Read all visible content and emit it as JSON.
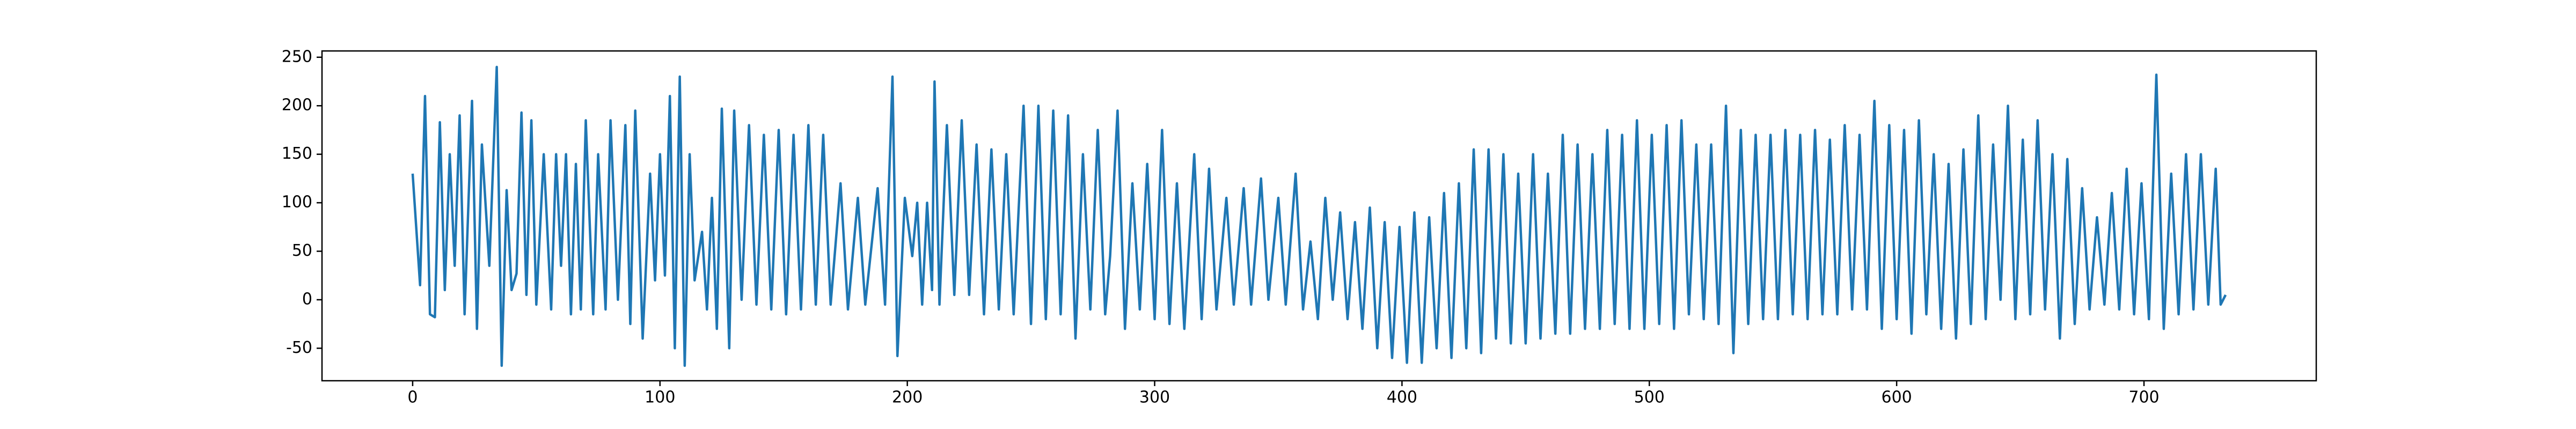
{
  "chart_data": {
    "type": "line",
    "color": "#1f77b4",
    "x": [
      0,
      3,
      5,
      7,
      9,
      11,
      13,
      15,
      17,
      19,
      21,
      24,
      26,
      28,
      31,
      34,
      36,
      38,
      40,
      42,
      44,
      46,
      48,
      50,
      53,
      56,
      58,
      60,
      62,
      64,
      66,
      68,
      70,
      73,
      75,
      78,
      80,
      83,
      86,
      88,
      90,
      93,
      96,
      98,
      100,
      102,
      104,
      106,
      108,
      110,
      112,
      114,
      117,
      119,
      121,
      123,
      125,
      128,
      130,
      133,
      136,
      139,
      142,
      145,
      148,
      151,
      154,
      157,
      160,
      163,
      166,
      169,
      173,
      176,
      180,
      183,
      188,
      191,
      194,
      196,
      199,
      202,
      204,
      206,
      208,
      210,
      211,
      213,
      216,
      219,
      222,
      225,
      228,
      231,
      234,
      237,
      240,
      243,
      247,
      250,
      253,
      256,
      259,
      262,
      265,
      268,
      271,
      274,
      277,
      280,
      282,
      285,
      288,
      291,
      294,
      297,
      300,
      303,
      306,
      309,
      312,
      316,
      319,
      322,
      325,
      329,
      332,
      336,
      339,
      343,
      346,
      350,
      353,
      357,
      360,
      363,
      366,
      369,
      372,
      375,
      378,
      381,
      384,
      387,
      390,
      393,
      396,
      399,
      402,
      405,
      408,
      411,
      414,
      417,
      420,
      423,
      426,
      429,
      432,
      435,
      438,
      441,
      444,
      447,
      450,
      453,
      456,
      459,
      462,
      465,
      468,
      471,
      474,
      477,
      480,
      483,
      486,
      489,
      492,
      495,
      498,
      501,
      504,
      507,
      510,
      513,
      516,
      519,
      522,
      525,
      528,
      531,
      534,
      537,
      540,
      543,
      546,
      549,
      552,
      555,
      558,
      561,
      564,
      567,
      570,
      573,
      576,
      579,
      582,
      585,
      588,
      591,
      594,
      597,
      600,
      603,
      606,
      609,
      612,
      615,
      618,
      621,
      624,
      627,
      630,
      633,
      636,
      639,
      642,
      645,
      648,
      651,
      654,
      657,
      660,
      663,
      666,
      669,
      672,
      675,
      678,
      681,
      684,
      687,
      690,
      693,
      696,
      699,
      702,
      705,
      708,
      711,
      714,
      717,
      720,
      723,
      726,
      729,
      731,
      733
    ],
    "values": [
      130,
      15,
      210,
      -15,
      -18,
      183,
      10,
      150,
      35,
      190,
      -15,
      205,
      -30,
      160,
      35,
      240,
      -68,
      113,
      10,
      27,
      193,
      5,
      185,
      -5,
      150,
      -10,
      150,
      35,
      150,
      -15,
      140,
      -10,
      185,
      -15,
      150,
      -10,
      185,
      0,
      180,
      -25,
      195,
      -40,
      130,
      20,
      150,
      25,
      210,
      -50,
      230,
      -68,
      150,
      20,
      70,
      -10,
      105,
      -30,
      197,
      -50,
      195,
      0,
      180,
      -5,
      170,
      -10,
      175,
      -15,
      170,
      -10,
      180,
      -5,
      170,
      -5,
      120,
      -10,
      105,
      -5,
      115,
      -5,
      230,
      -58,
      105,
      45,
      100,
      -5,
      100,
      10,
      225,
      -5,
      180,
      5,
      185,
      5,
      160,
      -15,
      155,
      -10,
      150,
      -15,
      200,
      -25,
      200,
      -20,
      195,
      -15,
      190,
      -40,
      150,
      -10,
      175,
      -15,
      45,
      195,
      -30,
      120,
      -10,
      140,
      -20,
      175,
      -25,
      120,
      -30,
      150,
      -20,
      135,
      -10,
      105,
      -5,
      115,
      -5,
      125,
      0,
      105,
      -5,
      130,
      -10,
      60,
      -20,
      105,
      0,
      90,
      -20,
      80,
      -30,
      95,
      -50,
      80,
      -60,
      75,
      -65,
      90,
      -65,
      85,
      -50,
      110,
      -60,
      120,
      -50,
      155,
      -55,
      155,
      -40,
      150,
      -45,
      130,
      -45,
      150,
      -40,
      130,
      -35,
      170,
      -35,
      160,
      -30,
      150,
      -30,
      175,
      -25,
      170,
      -30,
      185,
      -30,
      170,
      -25,
      180,
      -30,
      185,
      -15,
      160,
      -20,
      160,
      -25,
      200,
      -55,
      175,
      -25,
      170,
      -20,
      170,
      -20,
      175,
      -15,
      170,
      -20,
      175,
      -15,
      165,
      -15,
      180,
      -10,
      170,
      -10,
      205,
      -30,
      180,
      -20,
      175,
      -35,
      185,
      -15,
      150,
      -30,
      140,
      -40,
      155,
      -25,
      190,
      -20,
      160,
      0,
      200,
      -20,
      165,
      -15,
      185,
      -10,
      150,
      -40,
      145,
      -25,
      115,
      -10,
      85,
      -5,
      110,
      -10,
      135,
      -15,
      120,
      -20,
      232,
      -30,
      130,
      -15,
      150,
      -10,
      150,
      -5,
      135,
      -5,
      5
    ],
    "xlim": [
      -36.65,
      769.65
    ],
    "ylim": [
      -83.5,
      256.5
    ],
    "xticks": [
      0,
      100,
      200,
      300,
      400,
      500,
      600,
      700
    ],
    "yticks": [
      -50,
      0,
      50,
      100,
      150,
      200,
      250
    ]
  }
}
